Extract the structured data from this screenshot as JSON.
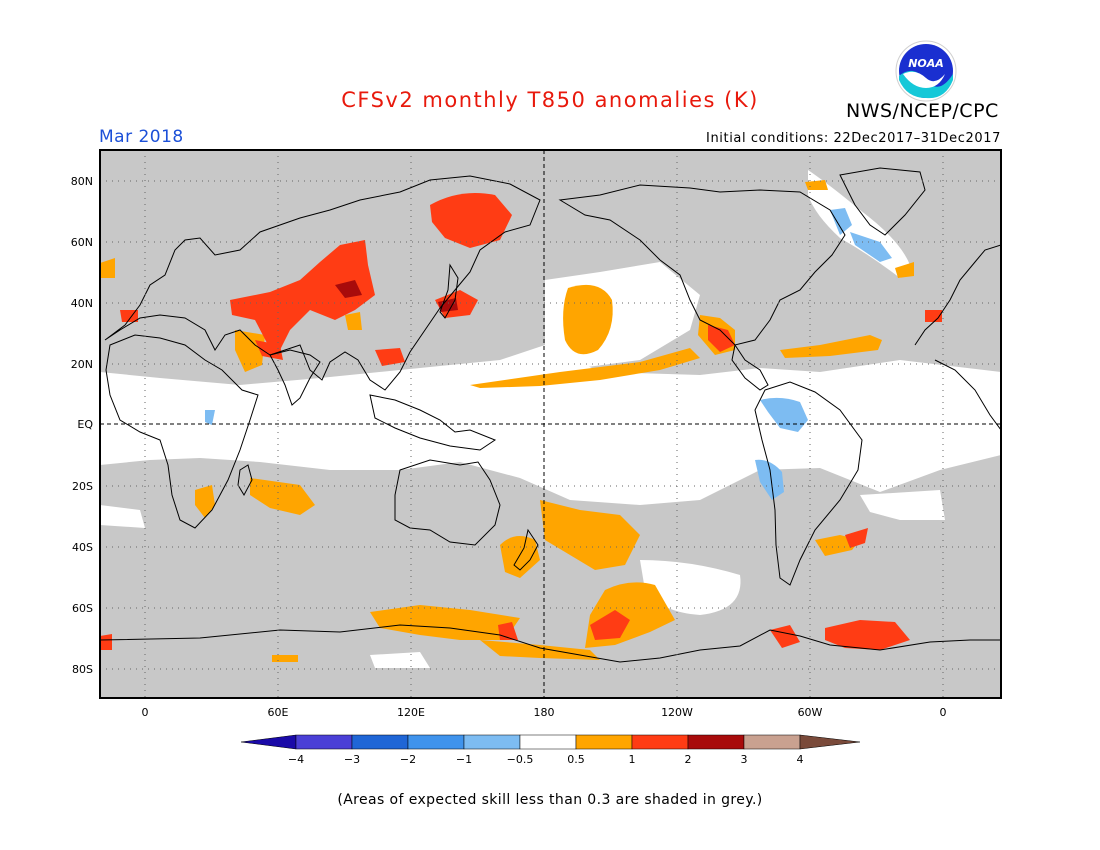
{
  "title": "CFSv2 monthly T850 anomalies (K)",
  "organization": "NWS/NCEP/CPC",
  "logo_text": "NOAA",
  "period": "Mar 2018",
  "initial_conditions": "Initial conditions: 22Dec2017–31Dec2017",
  "footnote": "(Areas of expected skill less than 0.3 are shaded in grey.)",
  "map": {
    "lat_labels": [
      "80N",
      "60N",
      "40N",
      "20N",
      "EQ",
      "20S",
      "40S",
      "60S",
      "80S"
    ],
    "lon_labels": [
      "0",
      "60E",
      "120E",
      "180",
      "120W",
      "60W",
      "0"
    ],
    "grey_meaning": "skill < 0.3"
  },
  "legend": {
    "tick_labels": [
      "−4",
      "−3",
      "−2",
      "−1",
      "−0.5",
      "0.5",
      "1",
      "2",
      "3",
      "4"
    ],
    "colors": [
      "#1a0aa8",
      "#4a3fd6",
      "#1f66d6",
      "#3f93ec",
      "#7dbcf2",
      "#ffffff",
      "#ffa500",
      "#ff3c14",
      "#a80b0b",
      "#c9a190",
      "#7a4a3a"
    ]
  },
  "colors": {
    "grey": "#c8c8c8",
    "warm_1": "#ffa500",
    "warm_2": "#ff3c14",
    "warm_3": "#a80b0b",
    "cool_1": "#7dbcf2",
    "title": "#e8190c",
    "period": "#1c50d8"
  }
}
